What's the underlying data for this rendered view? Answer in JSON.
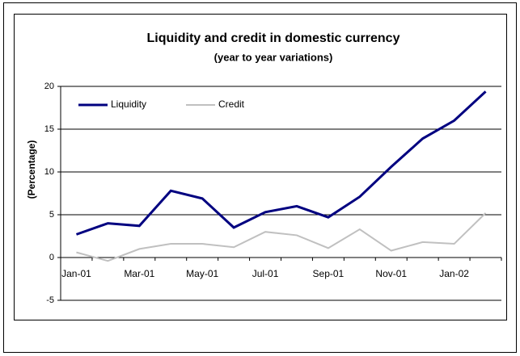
{
  "chart_data": {
    "type": "line",
    "title": "Liquidity and credit in domestic currency",
    "subtitle": "(year to year variations)",
    "y_label": "(Percentage)",
    "categories": [
      "Jan-01",
      null,
      "Mar-01",
      null,
      "May-01",
      null,
      "Jul-01",
      null,
      "Sep-01",
      null,
      "Nov-01",
      null,
      "Jan-02",
      null
    ],
    "series": [
      {
        "name": "Liquidity",
        "color": "#000080",
        "values": [
          2.7,
          4.0,
          3.7,
          7.8,
          6.9,
          3.5,
          5.3,
          6.0,
          4.7,
          7.1,
          10.6,
          13.9,
          16.0,
          19.4
        ]
      },
      {
        "name": "Credit",
        "color": "#c0c0c0",
        "values": [
          0.6,
          -0.4,
          1.0,
          1.6,
          1.6,
          1.2,
          3.0,
          2.6,
          1.1,
          3.3,
          0.8,
          1.8,
          1.6,
          5.2
        ]
      }
    ],
    "ylim": [
      -5,
      20
    ],
    "yticks": [
      -5,
      0,
      5,
      10,
      15,
      20
    ],
    "grid": true,
    "legend": "top-left"
  }
}
